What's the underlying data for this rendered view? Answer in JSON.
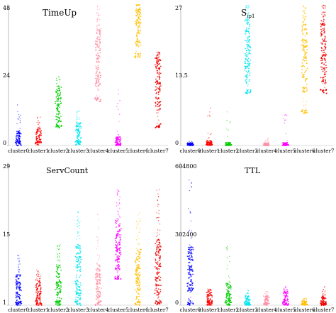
{
  "chart_data": [
    {
      "type": "scatter",
      "title": "TimeUp",
      "title_sub": "",
      "categories": [
        "cluster0",
        "cluster1",
        "cluster2",
        "cluster3",
        "cluster4",
        "cluster5",
        "cluster6",
        "cluster7"
      ],
      "ylim": [
        0,
        48
      ],
      "yticks": [
        "0",
        "24",
        "48"
      ],
      "grid": false,
      "legend": "none",
      "distributions": [
        {
          "low": 0,
          "core_low": 0,
          "core_high": 5,
          "high": 14
        },
        {
          "low": 0,
          "core_low": 1,
          "core_high": 6,
          "high": 10
        },
        {
          "low": 6,
          "core_low": 8,
          "core_high": 20,
          "high": 24
        },
        {
          "low": 0,
          "core_low": 1,
          "core_high": 8,
          "high": 12
        },
        {
          "low": 15,
          "core_low": 20,
          "core_high": 40,
          "high": 48
        },
        {
          "low": 0,
          "core_low": 0,
          "core_high": 3,
          "high": 20
        },
        {
          "low": 30,
          "core_low": 34,
          "core_high": 48,
          "high": 48
        },
        {
          "low": 6,
          "core_low": 12,
          "core_high": 30,
          "high": 32
        }
      ]
    },
    {
      "type": "scatter",
      "title": "S",
      "title_sub": "ip1",
      "categories": [
        "cluster0",
        "cluster1",
        "cluster2",
        "cluster3",
        "cluster4",
        "cluster5",
        "cluster6",
        "cluster7"
      ],
      "ylim": [
        0,
        27
      ],
      "yticks": [
        "0",
        "13.5",
        "27"
      ],
      "grid": false,
      "legend": "none",
      "distributions": [
        {
          "low": 0,
          "core_low": 0,
          "core_high": 0.5,
          "high": 1
        },
        {
          "low": 0,
          "core_low": 0,
          "core_high": 1,
          "high": 8
        },
        {
          "low": 0,
          "core_low": 0,
          "core_high": 0.6,
          "high": 8
        },
        {
          "low": 10,
          "core_low": 12,
          "core_high": 24,
          "high": 27
        },
        {
          "low": 0,
          "core_low": 0,
          "core_high": 0.5,
          "high": 2
        },
        {
          "low": 0,
          "core_low": 0,
          "core_high": 0.6,
          "high": 6
        },
        {
          "low": 6,
          "core_low": 10,
          "core_high": 24,
          "high": 27
        },
        {
          "low": 10,
          "core_low": 12,
          "core_high": 24,
          "high": 27
        }
      ]
    },
    {
      "type": "scatter",
      "title": "ServCount",
      "title_sub": "",
      "categories": [
        "cluster0",
        "cluster1",
        "cluster2",
        "cluster3",
        "cluster4",
        "cluster5",
        "cluster6",
        "cluster7"
      ],
      "ylim": [
        1,
        29
      ],
      "yticks": [
        "1",
        "15",
        "29"
      ],
      "grid": false,
      "legend": "none",
      "distributions": [
        {
          "low": 1,
          "core_low": 1,
          "core_high": 7,
          "high": 11
        },
        {
          "low": 1,
          "core_low": 1,
          "core_high": 6,
          "high": 8
        },
        {
          "low": 1,
          "core_low": 1,
          "core_high": 9,
          "high": 13
        },
        {
          "low": 1,
          "core_low": 2,
          "core_high": 13,
          "high": 20
        },
        {
          "low": 1,
          "core_low": 2,
          "core_high": 9,
          "high": 20
        },
        {
          "low": 6,
          "core_low": 8,
          "core_high": 18,
          "high": 24
        },
        {
          "low": 1,
          "core_low": 2,
          "core_high": 12,
          "high": 20
        },
        {
          "low": 1,
          "core_low": 3,
          "core_high": 14,
          "high": 24
        }
      ]
    },
    {
      "type": "scatter",
      "title": "TTL",
      "title_sub": "",
      "categories": [
        "cluster0",
        "cluster1",
        "cluster2",
        "cluster3",
        "cluster4",
        "cluster5",
        "cluster6",
        "cluster7"
      ],
      "ylim": [
        0,
        604800
      ],
      "yticks": [
        "0",
        "302400",
        "604800"
      ],
      "grid": false,
      "legend": "none",
      "distributions": [
        {
          "low": 0,
          "core_low": 60000,
          "core_high": 250000,
          "high": 540000
        },
        {
          "low": 0,
          "core_low": 0,
          "core_high": 60000,
          "high": 70000
        },
        {
          "low": 0,
          "core_low": 0,
          "core_high": 100000,
          "high": 250000
        },
        {
          "low": 0,
          "core_low": 0,
          "core_high": 40000,
          "high": 70000
        },
        {
          "low": 0,
          "core_low": 0,
          "core_high": 40000,
          "high": 60000
        },
        {
          "low": 0,
          "core_low": 0,
          "core_high": 60000,
          "high": 80000
        },
        {
          "low": 0,
          "core_low": 0,
          "core_high": 20000,
          "high": 30000
        },
        {
          "low": 0,
          "core_low": 0,
          "core_high": 40000,
          "high": 80000
        }
      ]
    }
  ],
  "colors": [
    "#0000ff",
    "#ff0000",
    "#00cc00",
    "#00e5ee",
    "#ff8fa3",
    "#ff00ff",
    "#ffc000",
    "#ee0000"
  ]
}
